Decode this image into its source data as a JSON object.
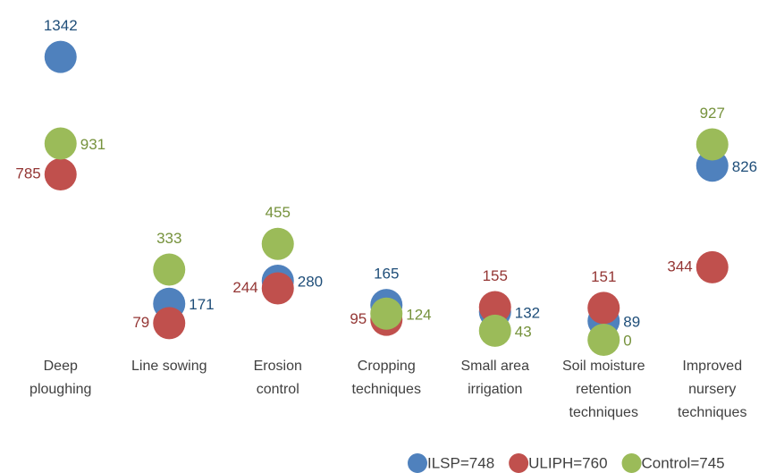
{
  "chart_data": {
    "type": "dot",
    "categories": [
      "Deep\nploughing",
      "Line sowing",
      "Erosion\ncontrol",
      "Cropping\ntechniques",
      "Small area\nirrigation",
      "Soil moisture\nretention\ntechniques",
      "Improved\nnursery\ntechniques"
    ],
    "series": [
      {
        "name": "ILSP=748",
        "color": "#4f81bd",
        "values": [
          1342,
          171,
          280,
          165,
          132,
          89,
          826
        ]
      },
      {
        "name": "ULIPH=760",
        "color": "#c0504d",
        "values": [
          785,
          79,
          244,
          95,
          155,
          151,
          344
        ]
      },
      {
        "name": "Control=745",
        "color": "#9bbb59",
        "values": [
          931,
          333,
          455,
          124,
          43,
          0,
          927
        ]
      }
    ],
    "ylim": [
      0,
      1400
    ],
    "legend": "bottom-right"
  }
}
